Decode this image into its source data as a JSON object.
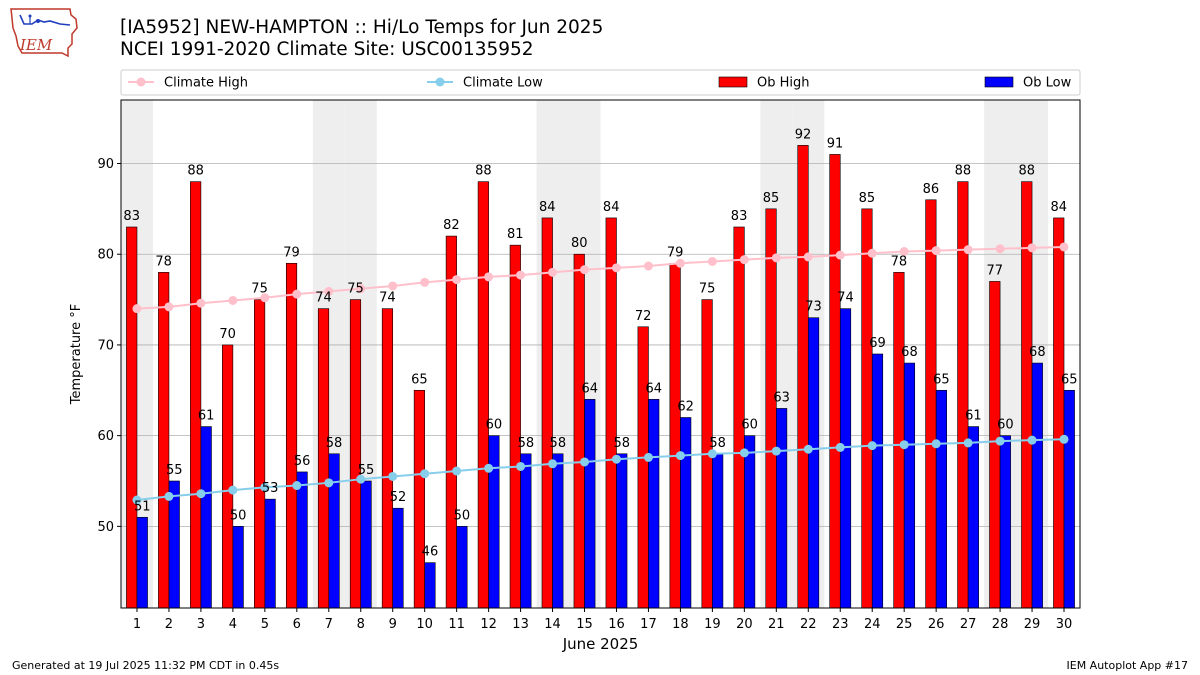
{
  "header": {
    "title_line1": "[IA5952] NEW-HAMPTON :: Hi/Lo Temps for Jun 2025",
    "title_line2": "NCEI 1991-2020 Climate Site: USC00135952",
    "logo_text": "IEM"
  },
  "footer": {
    "generated": "Generated at 19 Jul 2025 11:32 PM CDT in 0.45s",
    "app": "IEM Autoplot App #17"
  },
  "colors": {
    "ob_high": "#ff0000",
    "ob_low": "#0000ff",
    "climate_high": "#ffc0cb",
    "climate_low": "#87ceeb",
    "weekend_shade": "#eeeeee",
    "grid": "#b0b0b0"
  },
  "chart_data": {
    "type": "bar",
    "xlabel": "June 2025",
    "ylabel": "Temperature °F",
    "ylim": [
      41,
      97
    ],
    "yticks": [
      50,
      60,
      70,
      80,
      90
    ],
    "grid": "horizontal",
    "legend_placement": "top, above plot",
    "categories": [
      "1",
      "2",
      "3",
      "4",
      "5",
      "6",
      "7",
      "8",
      "9",
      "10",
      "11",
      "12",
      "13",
      "14",
      "15",
      "16",
      "17",
      "18",
      "19",
      "20",
      "21",
      "22",
      "23",
      "24",
      "25",
      "26",
      "27",
      "28",
      "29",
      "30"
    ],
    "shaded_days": [
      1,
      7,
      8,
      14,
      15,
      21,
      22,
      28,
      29
    ],
    "series": [
      {
        "name": "Ob High",
        "kind": "bar",
        "values": [
          83,
          78,
          88,
          70,
          75,
          79,
          74,
          75,
          74,
          65,
          82,
          88,
          81,
          84,
          80,
          84,
          72,
          79,
          75,
          83,
          85,
          92,
          91,
          85,
          78,
          86,
          88,
          77,
          88,
          84
        ]
      },
      {
        "name": "Ob Low",
        "kind": "bar",
        "values": [
          51,
          55,
          61,
          50,
          53,
          56,
          58,
          55,
          52,
          46,
          50,
          60,
          58,
          58,
          64,
          58,
          64,
          62,
          58,
          60,
          63,
          73,
          74,
          69,
          68,
          65,
          61,
          60,
          68,
          65
        ]
      },
      {
        "name": "Climate High",
        "kind": "line",
        "values": [
          74.0,
          74.2,
          74.6,
          74.9,
          75.2,
          75.6,
          75.9,
          76.2,
          76.5,
          76.9,
          77.2,
          77.5,
          77.7,
          78.0,
          78.3,
          78.5,
          78.7,
          79.0,
          79.2,
          79.4,
          79.6,
          79.7,
          79.9,
          80.1,
          80.3,
          80.4,
          80.5,
          80.6,
          80.7,
          80.8
        ]
      },
      {
        "name": "Climate Low",
        "kind": "line",
        "values": [
          52.9,
          53.3,
          53.6,
          54.0,
          54.3,
          54.5,
          54.8,
          55.2,
          55.5,
          55.8,
          56.1,
          56.4,
          56.6,
          56.9,
          57.1,
          57.4,
          57.6,
          57.8,
          58.0,
          58.1,
          58.3,
          58.5,
          58.7,
          58.9,
          59.0,
          59.1,
          59.2,
          59.4,
          59.5,
          59.6
        ]
      }
    ]
  }
}
